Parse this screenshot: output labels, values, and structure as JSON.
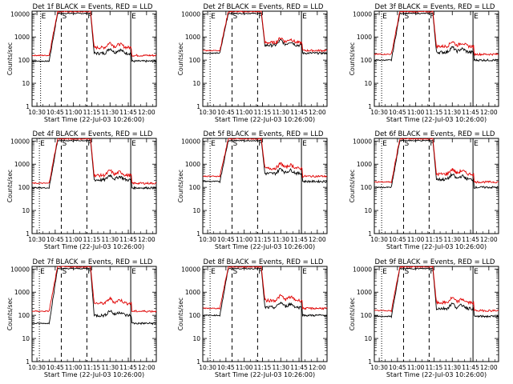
{
  "figure": {
    "ylabel": "Counts/sec",
    "xlabel": "Start Time (22-Jul-03 10:26:00)",
    "xticks": [
      "10:30",
      "10:45",
      "11:00",
      "11:15",
      "11:30",
      "11:45",
      "12:00"
    ],
    "yticks": [
      "1",
      "10",
      "100",
      "1000",
      "10000"
    ]
  },
  "chart_data": [
    {
      "type": "line",
      "title": "Det 1f BLACK = Events, RED = LLD",
      "xlabel": "Start Time (22-Jul-03 10:26:00)",
      "ylabel": "Counts/sec",
      "x_range_minutes": [
        -4,
        98
      ],
      "ylim": [
        1,
        13000
      ],
      "yscale": "log",
      "markers": [
        {
          "label": "E",
          "x": 3
        },
        {
          "label": "S",
          "x": 20
        },
        {
          "label": "F",
          "x": 41
        },
        {
          "label": "E",
          "x": 77
        }
      ],
      "series": [
        {
          "name": "Events",
          "color": "#000000",
          "baseline": 90,
          "peak": 11000
        },
        {
          "name": "LLD",
          "color": "#e00000",
          "baseline": 160,
          "peak": 13000
        }
      ]
    },
    {
      "type": "line",
      "title": "Det 2f BLACK = Events, RED = LLD",
      "xlabel": "Start Time (22-Jul-03 10:26:00)",
      "ylabel": "Counts/sec",
      "x_range_minutes": [
        -4,
        98
      ],
      "ylim": [
        1,
        13000
      ],
      "yscale": "log",
      "markers": [
        {
          "label": "E",
          "x": 2
        },
        {
          "label": "S",
          "x": 20
        },
        {
          "label": "F",
          "x": 41
        },
        {
          "label": "E",
          "x": 77
        }
      ],
      "series": [
        {
          "name": "Events",
          "color": "#000000",
          "baseline": 200,
          "peak": 11000
        },
        {
          "name": "LLD",
          "color": "#e00000",
          "baseline": 260,
          "peak": 13000
        }
      ]
    },
    {
      "type": "line",
      "title": "Det 3f BLACK = Events, RED = LLD",
      "xlabel": "Start Time (22-Jul-03 10:26:00)",
      "ylabel": "Counts/sec",
      "x_range_minutes": [
        -4,
        98
      ],
      "ylim": [
        1,
        13000
      ],
      "yscale": "log",
      "markers": [
        {
          "label": "E",
          "x": 2
        },
        {
          "label": "S",
          "x": 20
        },
        {
          "label": "F",
          "x": 41
        },
        {
          "label": "E",
          "x": 77
        }
      ],
      "series": [
        {
          "name": "Events",
          "color": "#000000",
          "baseline": 100,
          "peak": 11000
        },
        {
          "name": "LLD",
          "color": "#e00000",
          "baseline": 180,
          "peak": 13000
        }
      ]
    },
    {
      "type": "line",
      "title": "Det 4f BLACK = Events, RED = LLD",
      "xlabel": "Start Time (22-Jul-03 10:26:00)",
      "ylabel": "Counts/sec",
      "x_range_minutes": [
        -4,
        98
      ],
      "ylim": [
        1,
        13000
      ],
      "yscale": "log",
      "markers": [
        {
          "label": "E",
          "x": 2
        },
        {
          "label": "S",
          "x": 20
        },
        {
          "label": "F",
          "x": 41
        },
        {
          "label": "E",
          "x": 77
        }
      ],
      "series": [
        {
          "name": "Events",
          "color": "#000000",
          "baseline": 95,
          "peak": 11000
        },
        {
          "name": "LLD",
          "color": "#e00000",
          "baseline": 150,
          "peak": 13000
        }
      ]
    },
    {
      "type": "line",
      "title": "Det 5f BLACK = Events, RED = LLD",
      "xlabel": "Start Time (22-Jul-03 10:26:00)",
      "ylabel": "Counts/sec",
      "x_range_minutes": [
        -4,
        98
      ],
      "ylim": [
        1,
        13000
      ],
      "yscale": "log",
      "markers": [
        {
          "label": "E",
          "x": 2
        },
        {
          "label": "S",
          "x": 20
        },
        {
          "label": "F",
          "x": 41
        },
        {
          "label": "E",
          "x": 77
        }
      ],
      "series": [
        {
          "name": "Events",
          "color": "#000000",
          "baseline": 180,
          "peak": 11000
        },
        {
          "name": "LLD",
          "color": "#e00000",
          "baseline": 300,
          "peak": 13000
        }
      ]
    },
    {
      "type": "line",
      "title": "Det 6f BLACK = Events, RED = LLD",
      "xlabel": "Start Time (22-Jul-03 10:26:00)",
      "ylabel": "Counts/sec",
      "x_range_minutes": [
        -4,
        98
      ],
      "ylim": [
        1,
        13000
      ],
      "yscale": "log",
      "markers": [
        {
          "label": "E",
          "x": 2
        },
        {
          "label": "S",
          "x": 20
        },
        {
          "label": "F",
          "x": 41
        },
        {
          "label": "E",
          "x": 77
        }
      ],
      "series": [
        {
          "name": "Events",
          "color": "#000000",
          "baseline": 100,
          "peak": 11000
        },
        {
          "name": "LLD",
          "color": "#e00000",
          "baseline": 170,
          "peak": 13000
        }
      ]
    },
    {
      "type": "line",
      "title": "Det 7f BLACK = Events, RED = LLD",
      "xlabel": "Start Time (22-Jul-03 10:26:00)",
      "ylabel": "Counts/sec",
      "x_range_minutes": [
        -4,
        98
      ],
      "ylim": [
        1,
        13000
      ],
      "yscale": "log",
      "markers": [
        {
          "label": "E",
          "x": 2
        },
        {
          "label": "S",
          "x": 20
        },
        {
          "label": "F",
          "x": 41
        },
        {
          "label": "E",
          "x": 77
        }
      ],
      "series": [
        {
          "name": "Events",
          "color": "#000000",
          "baseline": 45,
          "peak": 11000
        },
        {
          "name": "LLD",
          "color": "#e00000",
          "baseline": 150,
          "peak": 13000
        }
      ]
    },
    {
      "type": "line",
      "title": "Det 8f BLACK = Events, RED = LLD",
      "xlabel": "Start Time (22-Jul-03 10:26:00)",
      "ylabel": "Counts/sec",
      "x_range_minutes": [
        -4,
        98
      ],
      "ylim": [
        1,
        13000
      ],
      "yscale": "log",
      "markers": [
        {
          "label": "E",
          "x": 2
        },
        {
          "label": "S",
          "x": 20
        },
        {
          "label": "F",
          "x": 41
        },
        {
          "label": "E",
          "x": 77
        }
      ],
      "series": [
        {
          "name": "Events",
          "color": "#000000",
          "baseline": 100,
          "peak": 11000
        },
        {
          "name": "LLD",
          "color": "#e00000",
          "baseline": 200,
          "peak": 13000
        }
      ]
    },
    {
      "type": "line",
      "title": "Det 9f BLACK = Events, RED = LLD",
      "xlabel": "Start Time (22-Jul-03 10:26:00)",
      "ylabel": "Counts/sec",
      "x_range_minutes": [
        -4,
        98
      ],
      "ylim": [
        1,
        13000
      ],
      "yscale": "log",
      "markers": [
        {
          "label": "E",
          "x": 2
        },
        {
          "label": "S",
          "x": 20
        },
        {
          "label": "F",
          "x": 41
        },
        {
          "label": "E",
          "x": 77
        }
      ],
      "series": [
        {
          "name": "Events",
          "color": "#000000",
          "baseline": 90,
          "peak": 11000
        },
        {
          "name": "LLD",
          "color": "#e00000",
          "baseline": 160,
          "peak": 13000
        }
      ]
    }
  ]
}
